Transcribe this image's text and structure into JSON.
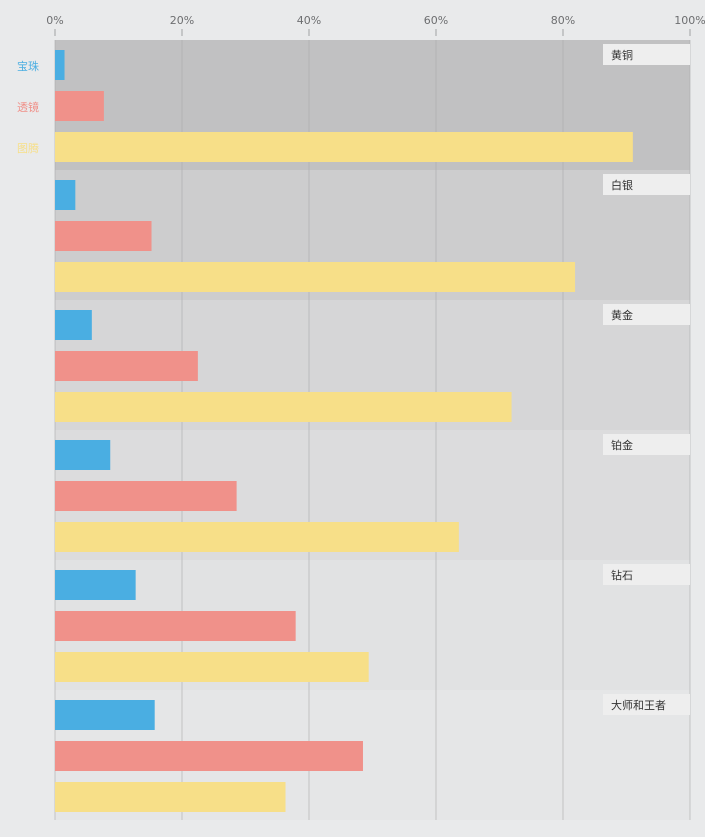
{
  "chart_data": {
    "type": "bar",
    "orientation": "horizontal",
    "xlim": [
      0,
      100
    ],
    "x_ticks": [
      "0%",
      "20%",
      "40%",
      "60%",
      "80%",
      "100%"
    ],
    "x_tick_values": [
      0,
      20,
      40,
      60,
      80,
      100
    ],
    "grid": true,
    "legend_position": "left",
    "categories": [
      "黄铜",
      "白银",
      "黄金",
      "铂金",
      "钻石",
      "大师和王者"
    ],
    "series": [
      {
        "name": "宝珠",
        "color": "#4aaee2",
        "values": [
          1.5,
          3.2,
          5.8,
          8.7,
          12.7,
          15.7
        ]
      },
      {
        "name": "透镜",
        "color": "#f0918a",
        "values": [
          7.7,
          15.2,
          22.5,
          28.6,
          37.9,
          48.5
        ]
      },
      {
        "name": "图腾",
        "color": "#f7df88",
        "values": [
          91.0,
          81.9,
          71.9,
          63.6,
          49.4,
          36.3
        ]
      }
    ],
    "band_colors": [
      "#c1c1c2",
      "#cdcdce",
      "#d6d6d7",
      "#dcdcdd",
      "#e1e2e3",
      "#e5e6e7"
    ]
  }
}
